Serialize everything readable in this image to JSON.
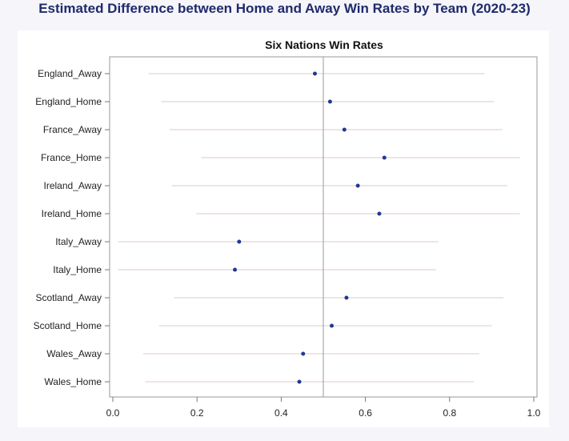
{
  "page": {
    "title": "Estimated Difference between Home and Away Win Rates by Team (2020-23)"
  },
  "chart_data": {
    "type": "scatter",
    "title": "Six Nations Win Rates",
    "xlabel": "",
    "ylabel": "",
    "xlim": [
      0.0,
      1.0
    ],
    "xticks": [
      "0.0",
      "0.2",
      "0.4",
      "0.6",
      "0.8",
      "1.0"
    ],
    "reference_line_x": 0.5,
    "grid": false,
    "colors": {
      "point": "#1f3a93",
      "interval": "#ecdcdc",
      "refline": "#999999",
      "frame": "#999999"
    },
    "categories": [
      "England_Away",
      "England_Home",
      "France_Away",
      "France_Home",
      "Ireland_Away",
      "Ireland_Home",
      "Italy_Away",
      "Italy_Home",
      "Scotland_Away",
      "Scotland_Home",
      "Wales_Away",
      "Wales_Home"
    ],
    "series": [
      {
        "values": [
          0.48,
          0.516,
          0.55,
          0.645,
          0.582,
          0.633,
          0.3,
          0.29,
          0.555,
          0.52,
          0.452,
          0.443
        ],
        "lower": [
          0.085,
          0.115,
          0.135,
          0.21,
          0.14,
          0.198,
          0.012,
          0.012,
          0.145,
          0.11,
          0.072,
          0.077
        ],
        "upper": [
          0.883,
          0.906,
          0.925,
          0.967,
          0.937,
          0.967,
          0.773,
          0.768,
          0.928,
          0.9,
          0.87,
          0.858
        ]
      }
    ]
  }
}
